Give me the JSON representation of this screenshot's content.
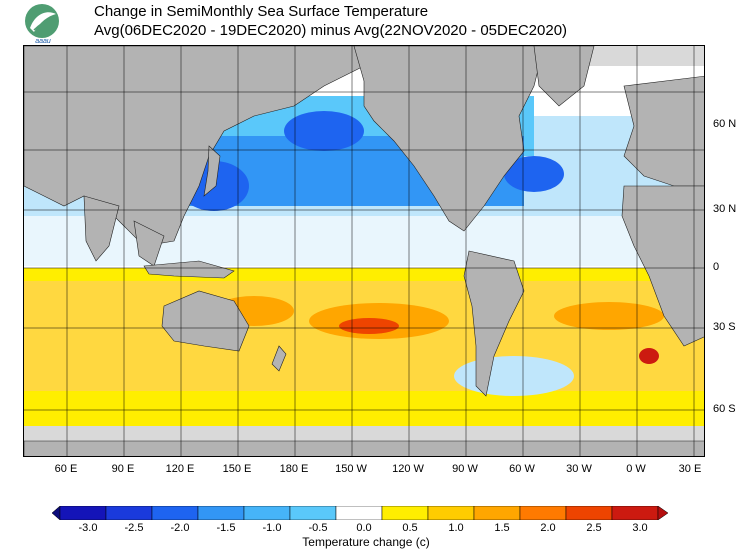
{
  "header": {
    "logo_text": "aaau",
    "title_line1": "Change in SemiMonthly Sea Surface Temperature",
    "title_line2": "Avg(06DEC2020 - 19DEC2020) minus Avg(22NOV2020 - 05DEC2020)"
  },
  "map": {
    "longitude_labels": [
      "60 E",
      "90 E",
      "120 E",
      "150 E",
      "180 E",
      "150 W",
      "120 W",
      "90 W",
      "60 W",
      "30 W",
      "0 W",
      "30 E"
    ],
    "latitude_labels": [
      "60 N",
      "30 N",
      "0",
      "30 S",
      "60 S"
    ],
    "colors": {
      "land": "#b3b3b3",
      "ice": "#d9d9d9",
      "ocean_neutral": "#ffffff"
    }
  },
  "legend": {
    "title": "Temperature change  (c)",
    "labels": [
      "-3.0",
      "-2.5",
      "-2.0",
      "-1.5",
      "-1.0",
      "-0.5",
      "0.0",
      "0.5",
      "1.0",
      "1.5",
      "2.0",
      "2.5",
      "3.0"
    ],
    "colors": [
      "#0c0c7a",
      "#1414b8",
      "#1a3adc",
      "#1e64f0",
      "#3296f5",
      "#5ac8fa",
      "#ffffff",
      "#ffee00",
      "#ffcc00",
      "#ffa600",
      "#ff7a00",
      "#ee4400",
      "#cc1a10",
      "#b40f0f"
    ]
  }
}
